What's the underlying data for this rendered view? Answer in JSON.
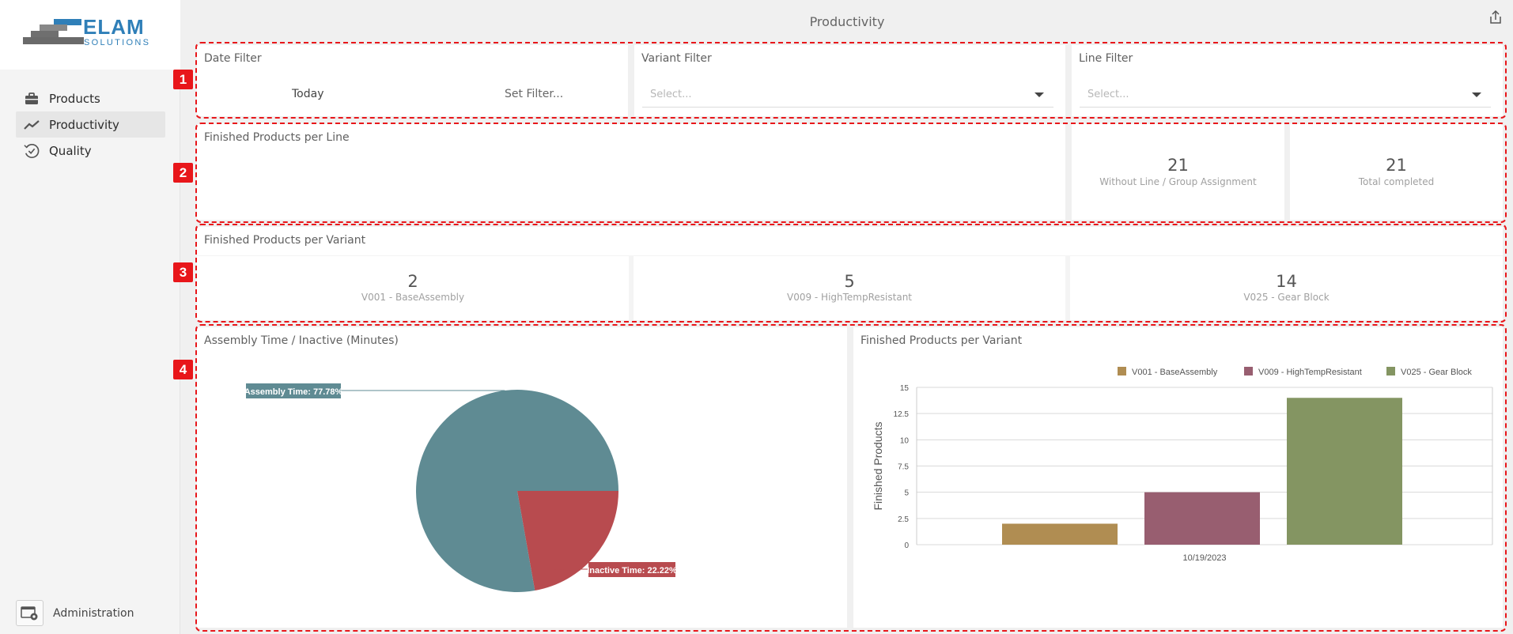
{
  "app": {
    "logo_main": "ELAM",
    "logo_sub": "SOLUTIONS"
  },
  "sidebar": {
    "items": [
      {
        "label": "Products",
        "icon": "briefcase-icon"
      },
      {
        "label": "Productivity",
        "icon": "trend-line-icon",
        "active": true
      },
      {
        "label": "Quality",
        "icon": "clock-check-icon"
      }
    ],
    "admin_label": "Administration"
  },
  "header": {
    "title": "Productivity"
  },
  "filters": {
    "date": {
      "title": "Date Filter",
      "today": "Today",
      "set_filter": "Set Filter..."
    },
    "variant": {
      "title": "Variant Filter",
      "placeholder": "Select..."
    },
    "line": {
      "title": "Line Filter",
      "placeholder": "Select..."
    }
  },
  "line_section": {
    "title": "Finished Products per Line",
    "kpis": [
      {
        "value": "21",
        "label": "Without Line / Group Assignment"
      },
      {
        "value": "21",
        "label": "Total completed"
      }
    ]
  },
  "variant_section": {
    "title": "Finished Products per Variant",
    "kpis": [
      {
        "value": "2",
        "label": "V001 - BaseAssembly"
      },
      {
        "value": "5",
        "label": "V009 - HighTempResistant"
      },
      {
        "value": "14",
        "label": "V025 - Gear Block"
      }
    ]
  },
  "markers": [
    "1",
    "2",
    "3",
    "4"
  ],
  "colors": {
    "marker_red": "#e8161a",
    "assembly": "#5f8b93",
    "inactive": "#b84b4f",
    "v001": "#b08d52",
    "v009": "#985e70",
    "v025": "#849562"
  },
  "chart_data": [
    {
      "type": "pie",
      "title": "Assembly Time / Inactive (Minutes)",
      "slices": [
        {
          "label": "Assembly Time: 77.78%",
          "value": 77.78,
          "color": "#5f8b93"
        },
        {
          "label": "Inactive Time: 22.22%",
          "value": 22.22,
          "color": "#b84b4f"
        }
      ]
    },
    {
      "type": "bar",
      "title": "Finished Products per Variant",
      "categories": [
        "10/19/2023"
      ],
      "ylabel": "Finished Products",
      "xlabel": "",
      "ylim": [
        0,
        15
      ],
      "yticks": [
        "0",
        "2.5",
        "5",
        "7.5",
        "10",
        "12.5",
        "15"
      ],
      "legend_position": "top-right",
      "grid": true,
      "series": [
        {
          "name": "V001 - BaseAssembly",
          "values": [
            2
          ],
          "color": "#b08d52"
        },
        {
          "name": "V009 - HighTempResistant",
          "values": [
            5
          ],
          "color": "#985e70"
        },
        {
          "name": "V025 - Gear Block",
          "values": [
            14
          ],
          "color": "#849562"
        }
      ]
    }
  ]
}
